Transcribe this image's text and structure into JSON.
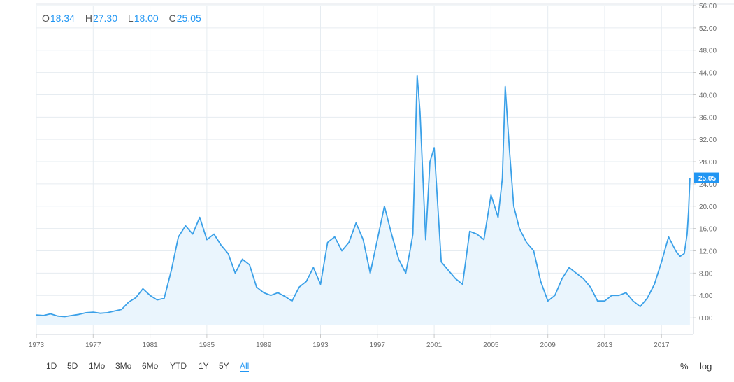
{
  "ohlc": [
    {
      "key": "O",
      "value": "18.34"
    },
    {
      "key": "H",
      "value": "27.30"
    },
    {
      "key": "L",
      "value": "18.00"
    },
    {
      "key": "C",
      "value": "25.05"
    }
  ],
  "toolbar": {
    "ranges": [
      {
        "label": "1D",
        "active": false
      },
      {
        "label": "5D",
        "active": false
      },
      {
        "label": "1Mo",
        "active": false
      },
      {
        "label": "3Mo",
        "active": false
      },
      {
        "label": "6Mo",
        "active": false
      },
      {
        "label": "YTD",
        "active": false
      },
      {
        "label": "1Y",
        "active": false
      },
      {
        "label": "5Y",
        "active": false
      },
      {
        "label": "All",
        "active": true
      }
    ],
    "percent_label": "%",
    "log_label": "log"
  },
  "colors": {
    "line": "#3aa0e8",
    "fill": "#eaf5fd",
    "grid": "#e6ecf1",
    "axis_text": "#6b6b6b",
    "last_badge": "#2196f3"
  },
  "chart_data": {
    "type": "area",
    "title": "",
    "xlabel": "",
    "ylabel": "",
    "ylim": [
      -3,
      56
    ],
    "xlim": [
      1973,
      2019.25
    ],
    "yticks": [
      "0.00",
      "4.00",
      "8.00",
      "12.00",
      "16.00",
      "20.00",
      "24.00",
      "28.00",
      "32.00",
      "36.00",
      "40.00",
      "44.00",
      "48.00",
      "52.00",
      "56.00"
    ],
    "xticks": [
      "1973",
      "1977",
      "1981",
      "1985",
      "1989",
      "1993",
      "1997",
      "2001",
      "2005",
      "2009",
      "2013",
      "2017"
    ],
    "last_value": "25.05",
    "grid": true,
    "x": [
      1973,
      1973.5,
      1974,
      1974.5,
      1975,
      1975.5,
      1976,
      1976.5,
      1977,
      1977.5,
      1978,
      1978.5,
      1979,
      1979.5,
      1980,
      1980.5,
      1981,
      1981.5,
      1982,
      1982.5,
      1983,
      1983.5,
      1984,
      1984.5,
      1985,
      1985.5,
      1986,
      1986.5,
      1987,
      1987.5,
      1988,
      1988.5,
      1989,
      1989.5,
      1990,
      1990.5,
      1991,
      1991.5,
      1992,
      1992.5,
      1993,
      1993.5,
      1994,
      1994.5,
      1995,
      1995.5,
      1996,
      1996.5,
      1997,
      1997.5,
      1998,
      1998.5,
      1999,
      1999.3,
      1999.5,
      1999.8,
      2000,
      2000.4,
      2000.7,
      2001,
      2001.5,
      2002,
      2002.5,
      2003,
      2003.5,
      2004,
      2004.5,
      2005,
      2005.5,
      2005.8,
      2006,
      2006.3,
      2006.6,
      2007,
      2007.5,
      2008,
      2008.5,
      2009,
      2009.5,
      2010,
      2010.5,
      2011,
      2011.5,
      2012,
      2012.5,
      2013,
      2013.5,
      2014,
      2014.5,
      2015,
      2015.5,
      2016,
      2016.5,
      2017,
      2017.5,
      2018,
      2018.3,
      2018.6,
      2018.8,
      2018.9,
      2019
    ],
    "y": [
      0.5,
      0.4,
      0.7,
      0.3,
      0.2,
      0.4,
      0.6,
      0.9,
      1.0,
      0.8,
      0.9,
      1.2,
      1.5,
      2.8,
      3.6,
      5.2,
      4.0,
      3.2,
      3.5,
      8.5,
      14.5,
      16.5,
      15.0,
      18.0,
      14.0,
      15.0,
      13.0,
      11.5,
      8.0,
      10.5,
      9.5,
      5.5,
      4.5,
      4.0,
      4.5,
      3.8,
      3.0,
      5.5,
      6.5,
      9.0,
      6.0,
      13.5,
      14.5,
      12.0,
      13.5,
      17.0,
      14.0,
      8.0,
      14.0,
      20.0,
      15.0,
      10.5,
      8.0,
      12.0,
      15.0,
      43.5,
      37.0,
      14.0,
      28.0,
      30.5,
      10.0,
      8.5,
      7.0,
      6.0,
      15.5,
      15.0,
      14.0,
      22.0,
      18.0,
      25.0,
      41.5,
      30.0,
      20.0,
      16.0,
      13.5,
      12.0,
      6.5,
      3.0,
      4.0,
      7.0,
      9.0,
      8.0,
      7.0,
      5.5,
      3.0,
      3.0,
      4.0,
      4.0,
      4.5,
      3.0,
      2.0,
      3.5,
      6.0,
      10.0,
      14.5,
      12.0,
      11.0,
      11.5,
      15.0,
      19.0,
      25.05
    ]
  }
}
